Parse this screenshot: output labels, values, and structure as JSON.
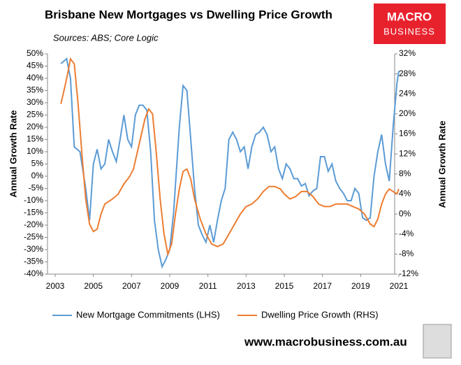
{
  "chart_data": {
    "type": "line",
    "title": "Brisbane New Mortgages vs Dwelling Price Growth",
    "subtitle": "Sources: ABS; Core Logic",
    "ylabel": "Annual Growth Rate",
    "y2label": "Annual Growth Rate",
    "logo": [
      "MACRO",
      "BUSINESS"
    ],
    "footer": "www.macrobusiness.com.au",
    "xlim": [
      2003,
      2021
    ],
    "xticks": [
      2003,
      2005,
      2007,
      2009,
      2011,
      2013,
      2015,
      2017,
      2019,
      2021
    ],
    "ylim": [
      -40,
      50
    ],
    "yticks": [
      {
        "value": -40,
        "label": "-40%"
      },
      {
        "value": -35,
        "label": "-35%"
      },
      {
        "value": -30,
        "label": "-30%"
      },
      {
        "value": -25,
        "label": "-25%"
      },
      {
        "value": -20,
        "label": "-20%"
      },
      {
        "value": -15,
        "label": "-15%"
      },
      {
        "value": -10,
        "label": "-10%"
      },
      {
        "value": -5,
        "label": "-5%"
      },
      {
        "value": 0,
        "label": "0%"
      },
      {
        "value": 5,
        "label": "5%"
      },
      {
        "value": 10,
        "label": "10%"
      },
      {
        "value": 15,
        "label": "15%"
      },
      {
        "value": 20,
        "label": "20%"
      },
      {
        "value": 25,
        "label": "25%"
      },
      {
        "value": 30,
        "label": "30%"
      },
      {
        "value": 35,
        "label": "35%"
      },
      {
        "value": 40,
        "label": "40%"
      },
      {
        "value": 45,
        "label": "45%"
      },
      {
        "value": 50,
        "label": "50%"
      }
    ],
    "y2lim": [
      -12,
      32
    ],
    "y2ticks": [
      {
        "value": -12,
        "label": "-12%"
      },
      {
        "value": -8,
        "label": "-8%"
      },
      {
        "value": -4,
        "label": "-4%"
      },
      {
        "value": 0,
        "label": "0%"
      },
      {
        "value": 4,
        "label": "4%"
      },
      {
        "value": 8,
        "label": "8%"
      },
      {
        "value": 12,
        "label": "12%"
      },
      {
        "value": 16,
        "label": "16%"
      },
      {
        "value": 20,
        "label": "20%"
      },
      {
        "value": 24,
        "label": "24%"
      },
      {
        "value": 28,
        "label": "28%"
      },
      {
        "value": 32,
        "label": "32%"
      }
    ],
    "series": [
      {
        "name": "New Mortgage Commitments (LHS)",
        "color": "#5b9bd5",
        "axis": "y",
        "x": [
          2003.3,
          2003.6,
          2003.8,
          2004.0,
          2004.3,
          2004.6,
          2004.8,
          2005.0,
          2005.2,
          2005.4,
          2005.6,
          2005.8,
          2006.0,
          2006.2,
          2006.4,
          2006.6,
          2006.8,
          2007.0,
          2007.2,
          2007.4,
          2007.6,
          2007.8,
          2008.0,
          2008.2,
          2008.4,
          2008.6,
          2008.8,
          2009.0,
          2009.2,
          2009.5,
          2009.7,
          2009.9,
          2010.1,
          2010.3,
          2010.5,
          2010.7,
          2010.9,
          2011.1,
          2011.3,
          2011.5,
          2011.7,
          2011.9,
          2012.1,
          2012.3,
          2012.5,
          2012.7,
          2012.9,
          2013.1,
          2013.3,
          2013.5,
          2013.7,
          2013.9,
          2014.1,
          2014.3,
          2014.5,
          2014.7,
          2014.9,
          2015.1,
          2015.3,
          2015.5,
          2015.7,
          2015.9,
          2016.1,
          2016.3,
          2016.5,
          2016.7,
          2016.9,
          2017.1,
          2017.3,
          2017.5,
          2017.7,
          2017.9,
          2018.1,
          2018.3,
          2018.5,
          2018.7,
          2018.9,
          2019.1,
          2019.3,
          2019.5,
          2019.7,
          2019.9,
          2020.1,
          2020.3,
          2020.5,
          2020.7,
          2020.9,
          2021.0
        ],
        "values": [
          46,
          48,
          40,
          12,
          10,
          -5,
          -18,
          5,
          11,
          3,
          5,
          15,
          10,
          6,
          15,
          25,
          15,
          12,
          25,
          29,
          29,
          27,
          10,
          -18,
          -30,
          -37,
          -34,
          -30,
          -15,
          20,
          37,
          35,
          15,
          -5,
          -20,
          -24,
          -27,
          -20,
          -27,
          -18,
          -10,
          -5,
          15,
          18,
          15,
          10,
          12,
          3,
          12,
          17,
          18,
          20,
          17,
          10,
          12,
          3,
          -1,
          5,
          3,
          -1,
          -1,
          -4,
          -3,
          -8,
          -6,
          -5,
          8,
          8,
          2,
          5,
          -2,
          -5,
          -7,
          -10,
          -10,
          -5,
          -7,
          -17,
          -18,
          -17,
          0,
          10,
          17,
          5,
          -2,
          20,
          38,
          43
        ]
      },
      {
        "name": "Dwelling Price Growth (RHS)",
        "color": "#ed7d31",
        "axis": "y2",
        "x": [
          2003.3,
          2003.6,
          2003.8,
          2004.0,
          2004.2,
          2004.4,
          2004.6,
          2004.8,
          2005.0,
          2005.2,
          2005.4,
          2005.6,
          2005.8,
          2006.0,
          2006.3,
          2006.6,
          2006.9,
          2007.1,
          2007.4,
          2007.7,
          2007.9,
          2008.1,
          2008.3,
          2008.5,
          2008.7,
          2008.9,
          2009.1,
          2009.3,
          2009.5,
          2009.7,
          2009.9,
          2010.1,
          2010.3,
          2010.6,
          2010.9,
          2011.2,
          2011.5,
          2011.8,
          2012.1,
          2012.4,
          2012.7,
          2013.0,
          2013.3,
          2013.6,
          2013.9,
          2014.2,
          2014.5,
          2014.8,
          2015.0,
          2015.3,
          2015.6,
          2015.9,
          2016.2,
          2016.5,
          2016.8,
          2017.1,
          2017.4,
          2017.7,
          2018.0,
          2018.3,
          2018.6,
          2018.9,
          2019.2,
          2019.5,
          2019.7,
          2019.9,
          2020.1,
          2020.3,
          2020.5,
          2020.7,
          2020.9,
          2021.0
        ],
        "values": [
          22,
          27,
          31,
          30,
          22,
          12,
          3,
          -2,
          -3.5,
          -3,
          0,
          2,
          2.5,
          3,
          4,
          6,
          7.5,
          9,
          14,
          19,
          21,
          20,
          12,
          3,
          -4,
          -8,
          -6,
          0,
          5,
          8.5,
          9,
          7,
          3,
          -1,
          -4,
          -6,
          -6.5,
          -6,
          -4,
          -2,
          0,
          1.5,
          2,
          3,
          4.5,
          5.5,
          5.5,
          5,
          4,
          3,
          3.5,
          4.5,
          4.5,
          3.5,
          2,
          1.5,
          1.5,
          2,
          2,
          2,
          1.5,
          1,
          0,
          -2,
          -2.5,
          -1,
          2,
          4,
          5,
          4.5,
          4,
          5
        ]
      }
    ]
  }
}
